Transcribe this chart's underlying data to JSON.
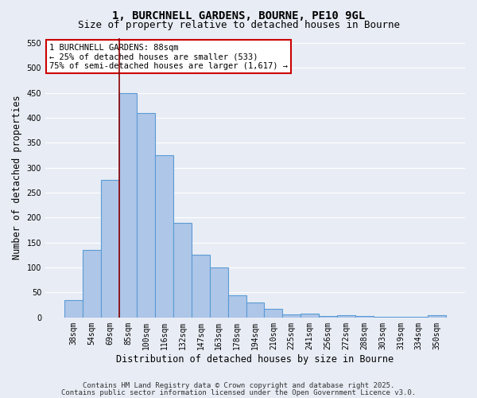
{
  "title1": "1, BURCHNELL GARDENS, BOURNE, PE10 9GL",
  "title2": "Size of property relative to detached houses in Bourne",
  "xlabel": "Distribution of detached houses by size in Bourne",
  "ylabel": "Number of detached properties",
  "categories": [
    "38sqm",
    "54sqm",
    "69sqm",
    "85sqm",
    "100sqm",
    "116sqm",
    "132sqm",
    "147sqm",
    "163sqm",
    "178sqm",
    "194sqm",
    "210sqm",
    "225sqm",
    "241sqm",
    "256sqm",
    "272sqm",
    "288sqm",
    "303sqm",
    "319sqm",
    "334sqm",
    "350sqm"
  ],
  "values": [
    35,
    135,
    275,
    450,
    410,
    325,
    190,
    125,
    100,
    45,
    30,
    18,
    6,
    8,
    3,
    4,
    3,
    2,
    1,
    1,
    5
  ],
  "bar_color": "#aec6e8",
  "bar_edge_color": "#5b9bd5",
  "bar_edge_width": 0.8,
  "vline_color": "#8b0000",
  "annotation_text": "1 BURCHNELL GARDENS: 88sqm\n← 25% of detached houses are smaller (533)\n75% of semi-detached houses are larger (1,617) →",
  "annotation_box_color": "#ffffff",
  "annotation_box_edge_color": "#cc0000",
  "ylim": [
    0,
    560
  ],
  "yticks": [
    0,
    50,
    100,
    150,
    200,
    250,
    300,
    350,
    400,
    450,
    500,
    550
  ],
  "bg_color": "#e8edf5",
  "grid_color": "#ffffff",
  "footer1": "Contains HM Land Registry data © Crown copyright and database right 2025.",
  "footer2": "Contains public sector information licensed under the Open Government Licence v3.0.",
  "title_fontsize": 10,
  "subtitle_fontsize": 9,
  "tick_fontsize": 7,
  "xlabel_fontsize": 8.5,
  "ylabel_fontsize": 8.5,
  "annotation_fontsize": 7.5,
  "footer_fontsize": 6.5
}
